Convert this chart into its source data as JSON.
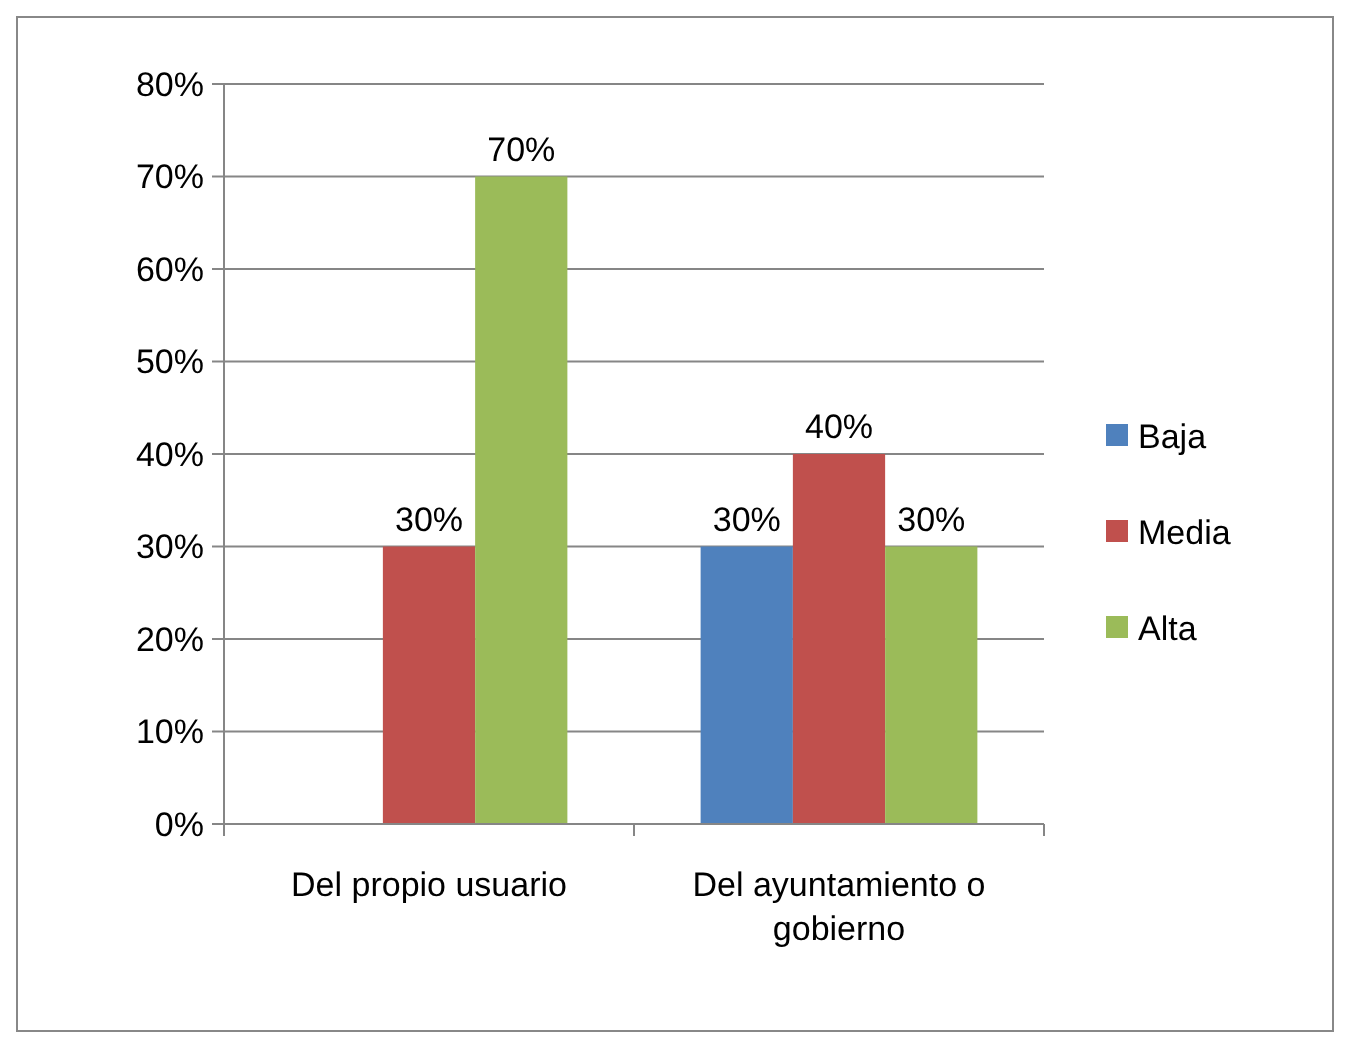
{
  "chart_data": {
    "type": "bar",
    "categories": [
      "Del propio usuario",
      "Del ayuntamiento o gobierno"
    ],
    "series": [
      {
        "name": "Baja",
        "color": "#4f81bd",
        "values": [
          null,
          30
        ],
        "value_labels": [
          null,
          "30%"
        ]
      },
      {
        "name": "Media",
        "color": "#c0504d",
        "values": [
          30,
          40
        ],
        "value_labels": [
          "30%",
          "40%"
        ]
      },
      {
        "name": "Alta",
        "color": "#9bbb59",
        "values": [
          70,
          30
        ],
        "value_labels": [
          "70%",
          "30%"
        ]
      }
    ],
    "ylim": [
      0,
      80
    ],
    "yticks": [
      {
        "value": 0,
        "label": "0%"
      },
      {
        "value": 10,
        "label": "10%"
      },
      {
        "value": 20,
        "label": "20%"
      },
      {
        "value": 30,
        "label": "30%"
      },
      {
        "value": 40,
        "label": "40%"
      },
      {
        "value": 50,
        "label": "50%"
      },
      {
        "value": 60,
        "label": "60%"
      },
      {
        "value": 70,
        "label": "70%"
      },
      {
        "value": 80,
        "label": "80%"
      }
    ],
    "grid": "y",
    "legend": "right"
  }
}
